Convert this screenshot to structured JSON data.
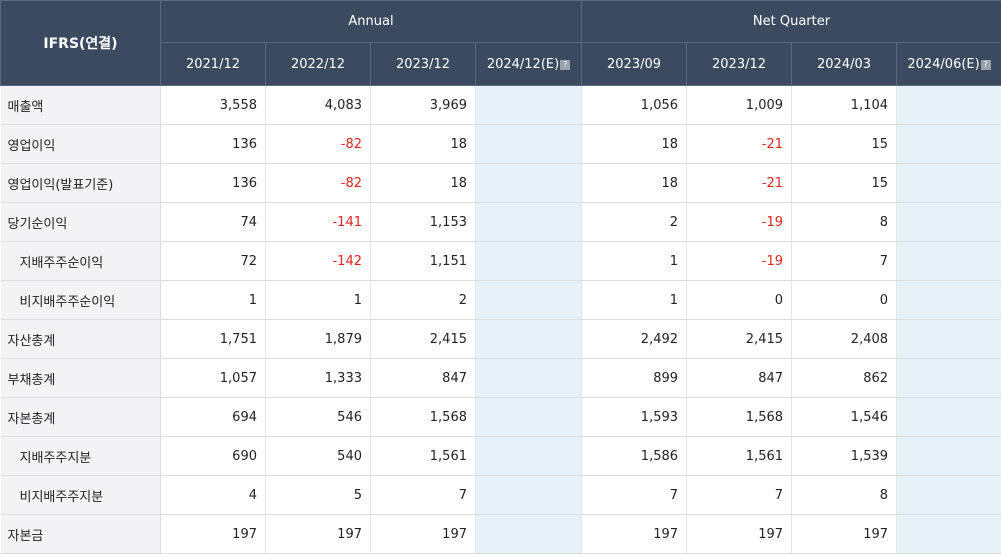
{
  "header": {
    "corner": "IFRS(연결)",
    "groups": [
      "Annual",
      "Net Quarter"
    ],
    "columns": [
      {
        "label": "2021/12",
        "help": false
      },
      {
        "label": "2022/12",
        "help": false
      },
      {
        "label": "2023/12",
        "help": false
      },
      {
        "label": "2024/12(E)",
        "help": true
      },
      {
        "label": "2023/09",
        "help": false
      },
      {
        "label": "2023/12",
        "help": false
      },
      {
        "label": "2024/03",
        "help": false
      },
      {
        "label": "2024/06(E)",
        "help": true
      }
    ]
  },
  "rows": [
    {
      "label": "매출액",
      "indent": false,
      "values": [
        "3,558",
        "4,083",
        "3,969",
        "",
        "1,056",
        "1,009",
        "1,104",
        ""
      ]
    },
    {
      "label": "영업이익",
      "indent": false,
      "values": [
        "136",
        "-82",
        "18",
        "",
        "18",
        "-21",
        "15",
        ""
      ]
    },
    {
      "label": "영업이익(발표기준)",
      "indent": false,
      "values": [
        "136",
        "-82",
        "18",
        "",
        "18",
        "-21",
        "15",
        ""
      ]
    },
    {
      "label": "당기순이익",
      "indent": false,
      "values": [
        "74",
        "-141",
        "1,153",
        "",
        "2",
        "-19",
        "8",
        ""
      ]
    },
    {
      "label": "지배주주순이익",
      "indent": true,
      "values": [
        "72",
        "-142",
        "1,151",
        "",
        "1",
        "-19",
        "7",
        ""
      ]
    },
    {
      "label": "비지배주주순이익",
      "indent": true,
      "values": [
        "1",
        "1",
        "2",
        "",
        "1",
        "0",
        "0",
        ""
      ]
    },
    {
      "label": "자산총계",
      "indent": false,
      "values": [
        "1,751",
        "1,879",
        "2,415",
        "",
        "2,492",
        "2,415",
        "2,408",
        ""
      ]
    },
    {
      "label": "부채총계",
      "indent": false,
      "values": [
        "1,057",
        "1,333",
        "847",
        "",
        "899",
        "847",
        "862",
        ""
      ]
    },
    {
      "label": "자본총계",
      "indent": false,
      "values": [
        "694",
        "546",
        "1,568",
        "",
        "1,593",
        "1,568",
        "1,546",
        ""
      ]
    },
    {
      "label": "지배주주지분",
      "indent": true,
      "values": [
        "690",
        "540",
        "1,561",
        "",
        "1,586",
        "1,561",
        "1,539",
        ""
      ]
    },
    {
      "label": "비지배주주지분",
      "indent": true,
      "values": [
        "4",
        "5",
        "7",
        "",
        "7",
        "7",
        "8",
        ""
      ]
    },
    {
      "label": "자본금",
      "indent": false,
      "values": [
        "197",
        "197",
        "197",
        "",
        "197",
        "197",
        "197",
        ""
      ]
    }
  ],
  "colors": {
    "header_bg": "#3b4a5e",
    "label_bg": "#f3f3f5",
    "estimate_bg": "#e6f2f8",
    "negative": "#e0231c"
  },
  "icons": {
    "help": "question-mark-icon"
  }
}
